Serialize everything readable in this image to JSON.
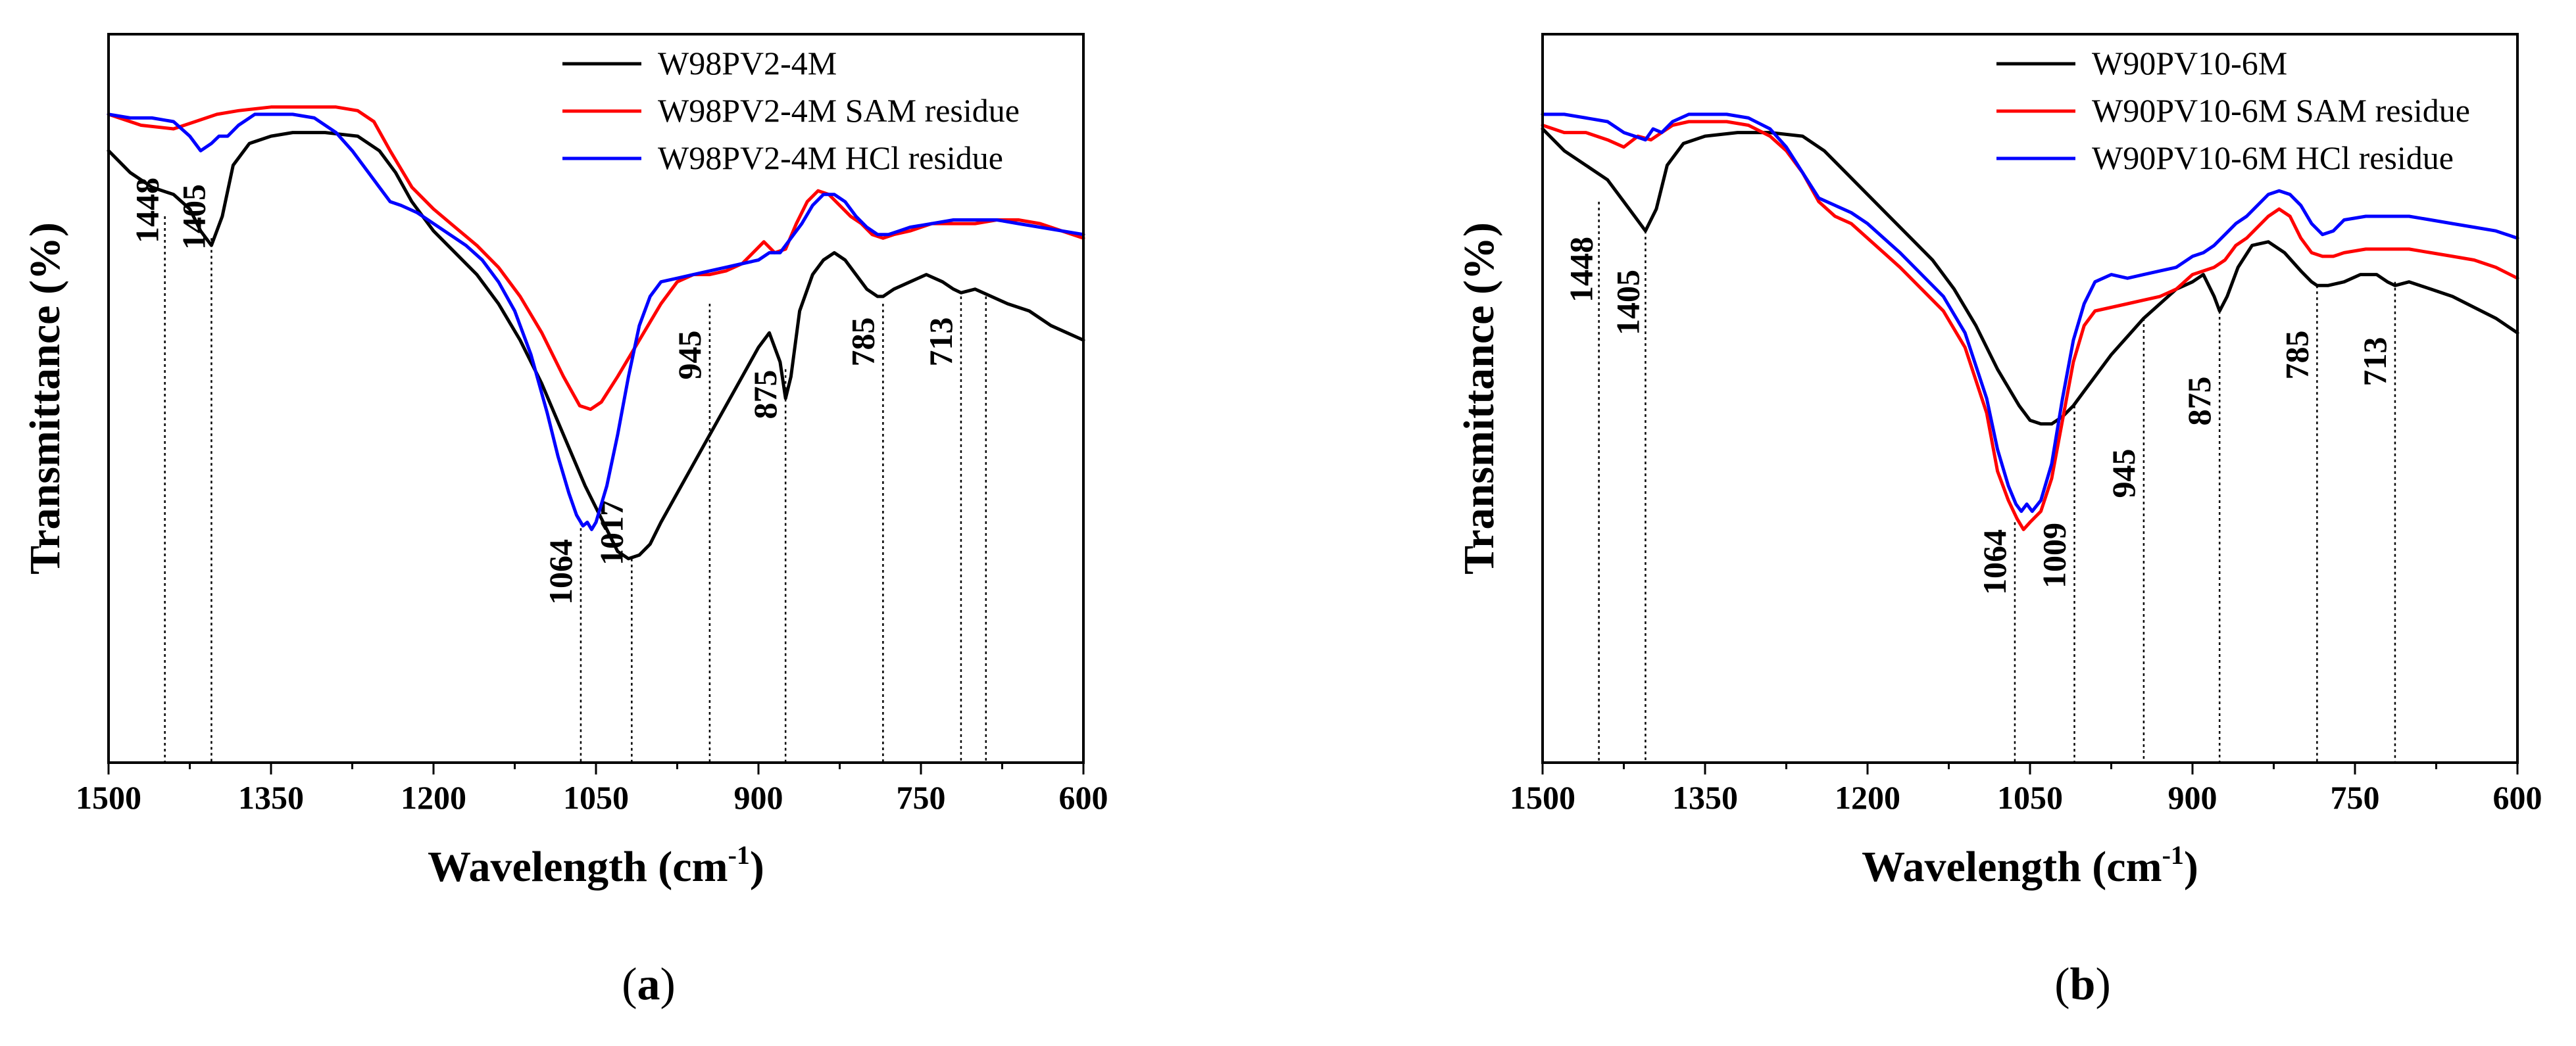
{
  "chart_data": [
    {
      "type": "line",
      "panel_label": "(a)",
      "panel_letter": "a",
      "xlabel": "Wavelength (cm",
      "xlabel_sup": "-1",
      "xlabel_close": ")",
      "ylabel": "Transmittance (%)",
      "xlim": [
        1500,
        600
      ],
      "ylim": [
        0,
        100
      ],
      "x_ticks": [
        1500,
        1350,
        1200,
        1050,
        900,
        750,
        600
      ],
      "y_ticks_labeled": false,
      "legend_position": "top-right",
      "series": [
        {
          "name": "W98PV2-4M",
          "color": "#000000",
          "x": [
            1500,
            1480,
            1460,
            1440,
            1425,
            1415,
            1405,
            1395,
            1385,
            1370,
            1350,
            1330,
            1300,
            1270,
            1250,
            1235,
            1220,
            1200,
            1180,
            1160,
            1140,
            1120,
            1100,
            1080,
            1060,
            1040,
            1030,
            1020,
            1010,
            1000,
            990,
            975,
            960,
            945,
            930,
            915,
            900,
            890,
            880,
            875,
            870,
            862,
            850,
            840,
            830,
            820,
            810,
            800,
            790,
            785,
            775,
            760,
            745,
            730,
            720,
            713,
            700,
            685,
            670,
            650,
            630,
            615,
            600
          ],
          "y": [
            84,
            81,
            79,
            78,
            76,
            73,
            71,
            75,
            82,
            85,
            86,
            86.5,
            86.5,
            86,
            84,
            81,
            77,
            73,
            70,
            67,
            63,
            58,
            52,
            45,
            38,
            32,
            29,
            28,
            28.5,
            30,
            33,
            37,
            41,
            45,
            49,
            53,
            57,
            59,
            55,
            50,
            53,
            62,
            67,
            69,
            70,
            69,
            67,
            65,
            64,
            64,
            65,
            66,
            67,
            66,
            65,
            64.5,
            65,
            64,
            63,
            62,
            60,
            59,
            58
          ]
        },
        {
          "name": "W98PV2-4M SAM residue",
          "color": "#ff0000",
          "x": [
            1500,
            1470,
            1440,
            1420,
            1400,
            1380,
            1350,
            1320,
            1290,
            1270,
            1255,
            1240,
            1220,
            1200,
            1180,
            1160,
            1140,
            1120,
            1100,
            1080,
            1065,
            1055,
            1045,
            1030,
            1010,
            990,
            975,
            960,
            945,
            930,
            915,
            905,
            895,
            885,
            875,
            865,
            855,
            845,
            835,
            825,
            815,
            805,
            795,
            785,
            775,
            760,
            740,
            720,
            700,
            680,
            660,
            640,
            620,
            600
          ],
          "y": [
            89,
            87.5,
            87,
            88,
            89,
            89.5,
            90,
            90,
            90,
            89.5,
            88,
            84,
            79,
            76,
            73.5,
            71,
            68,
            64,
            59,
            53,
            49,
            48.5,
            49.5,
            53,
            58,
            63,
            66,
            67,
            67,
            67.5,
            68.5,
            70,
            71.5,
            70,
            70.5,
            74,
            77,
            78.5,
            78,
            76.5,
            75,
            74,
            72.5,
            72,
            72.5,
            73,
            74,
            74,
            74,
            74.5,
            74.5,
            74,
            73,
            72
          ]
        },
        {
          "name": "W98PV2-4M HCl residue",
          "color": "#0000ff",
          "x": [
            1500,
            1480,
            1460,
            1440,
            1425,
            1415,
            1405,
            1398,
            1390,
            1380,
            1365,
            1350,
            1330,
            1310,
            1290,
            1275,
            1260,
            1250,
            1240,
            1230,
            1215,
            1200,
            1185,
            1170,
            1155,
            1140,
            1125,
            1110,
            1095,
            1085,
            1075,
            1068,
            1062,
            1058,
            1054,
            1050,
            1040,
            1030,
            1020,
            1010,
            1000,
            990,
            975,
            960,
            945,
            930,
            915,
            900,
            890,
            880,
            870,
            860,
            850,
            840,
            830,
            820,
            810,
            800,
            790,
            780,
            770,
            760,
            740,
            720,
            700,
            680,
            660,
            640,
            620,
            600
          ],
          "y": [
            89,
            88.5,
            88.5,
            88,
            86,
            84,
            85,
            86,
            86,
            87.5,
            89,
            89,
            89,
            88.5,
            86.5,
            84,
            81,
            79,
            77,
            76.5,
            75.5,
            74,
            72.5,
            71,
            69,
            66,
            62,
            56,
            48,
            42,
            37,
            34,
            32.5,
            33,
            32,
            33,
            38,
            45,
            53,
            60,
            64,
            66,
            66.5,
            67,
            67.5,
            68,
            68.5,
            69,
            70,
            70,
            72,
            74,
            76.5,
            78,
            78,
            77,
            75,
            73.5,
            72.5,
            72.5,
            73,
            73.5,
            74,
            74.5,
            74.5,
            74.5,
            74,
            73.5,
            73,
            72.5
          ]
        }
      ],
      "annotations": [
        {
          "label": "1448",
          "x": 1448,
          "y_top": 75
        },
        {
          "label": "1405",
          "x": 1405,
          "y_top": 72
        },
        {
          "label": "1064",
          "x": 1064,
          "y_top": 33
        },
        {
          "label": "1017",
          "x": 1017,
          "y_top": 28
        },
        {
          "label": "945",
          "x": 945,
          "y_top": 63
        },
        {
          "label": "875",
          "x": 875,
          "y_top": 54
        },
        {
          "label": "785",
          "x": 785,
          "y_top": 63
        },
        {
          "label": "713",
          "x": 713,
          "y_top": 64
        },
        {
          "label": "",
          "x": 690,
          "y_top": 64
        }
      ]
    },
    {
      "type": "line",
      "panel_label": "(b)",
      "panel_letter": "b",
      "xlabel": "Wavelength (cm",
      "xlabel_sup": "-1",
      "xlabel_close": ")",
      "ylabel": "Transmittance (%)",
      "xlim": [
        1500,
        600
      ],
      "ylim": [
        0,
        100
      ],
      "x_ticks": [
        1500,
        1350,
        1200,
        1050,
        900,
        750,
        600
      ],
      "y_ticks_labeled": false,
      "legend_position": "top-right",
      "series": [
        {
          "name": "W90PV10-6M",
          "color": "#000000",
          "x": [
            1500,
            1480,
            1460,
            1440,
            1425,
            1415,
            1405,
            1395,
            1385,
            1370,
            1350,
            1320,
            1290,
            1260,
            1240,
            1220,
            1200,
            1180,
            1160,
            1140,
            1120,
            1100,
            1080,
            1060,
            1050,
            1040,
            1030,
            1020,
            1010,
            1000,
            990,
            975,
            960,
            945,
            930,
            915,
            900,
            890,
            880,
            875,
            868,
            858,
            845,
            830,
            815,
            800,
            790,
            785,
            775,
            760,
            745,
            730,
            720,
            713,
            700,
            680,
            660,
            640,
            620,
            600
          ],
          "y": [
            87,
            84,
            82,
            80,
            77,
            75,
            73,
            76,
            82,
            85,
            86,
            86.5,
            86.5,
            86,
            84,
            81,
            78,
            75,
            72,
            69,
            65,
            60,
            54,
            49,
            47,
            46.5,
            46.5,
            47.5,
            49,
            51,
            53,
            56,
            58.5,
            61,
            63,
            65,
            66,
            67,
            64,
            62,
            64,
            68,
            71,
            71.5,
            70,
            67.5,
            66,
            65.5,
            65.5,
            66,
            67,
            67,
            66,
            65.5,
            66,
            65,
            64,
            62.5,
            61,
            59
          ]
        },
        {
          "name": "W90PV10-6M SAM residue",
          "color": "#ff0000",
          "x": [
            1500,
            1480,
            1460,
            1440,
            1425,
            1412,
            1400,
            1390,
            1380,
            1365,
            1350,
            1330,
            1310,
            1290,
            1275,
            1260,
            1245,
            1230,
            1215,
            1200,
            1185,
            1170,
            1150,
            1130,
            1110,
            1090,
            1080,
            1070,
            1062,
            1056,
            1050,
            1040,
            1030,
            1020,
            1010,
            1000,
            990,
            975,
            960,
            945,
            930,
            915,
            900,
            890,
            880,
            870,
            860,
            850,
            840,
            830,
            820,
            810,
            800,
            790,
            780,
            770,
            760,
            740,
            720,
            700,
            680,
            660,
            640,
            620,
            600
          ],
          "y": [
            87.5,
            86.5,
            86.5,
            85.5,
            84.5,
            86,
            85.5,
            86.5,
            87.5,
            88,
            88,
            88,
            87.5,
            86,
            84,
            81,
            77,
            75,
            74,
            72,
            70,
            68,
            65,
            62,
            57,
            48,
            40,
            36,
            33.5,
            32,
            33,
            34.5,
            39,
            47,
            55,
            60,
            62,
            62.5,
            63,
            63.5,
            64,
            65,
            67,
            67.5,
            68,
            69,
            71,
            72,
            73.5,
            75,
            76,
            75,
            72,
            70,
            69.5,
            69.5,
            70,
            70.5,
            70.5,
            70.5,
            70,
            69.5,
            69,
            68,
            66.5
          ]
        },
        {
          "name": "W90PV10-6M HCl residue",
          "color": "#0000ff",
          "x": [
            1500,
            1480,
            1460,
            1440,
            1425,
            1415,
            1405,
            1398,
            1390,
            1380,
            1365,
            1350,
            1330,
            1310,
            1290,
            1275,
            1260,
            1245,
            1230,
            1215,
            1200,
            1185,
            1170,
            1150,
            1130,
            1110,
            1090,
            1080,
            1070,
            1063,
            1058,
            1053,
            1048,
            1040,
            1030,
            1020,
            1010,
            1000,
            990,
            975,
            960,
            945,
            930,
            915,
            900,
            890,
            880,
            870,
            860,
            850,
            840,
            830,
            820,
            810,
            800,
            790,
            780,
            770,
            760,
            740,
            720,
            700,
            680,
            660,
            640,
            620,
            600
          ],
          "y": [
            89,
            89,
            88.5,
            88,
            86.5,
            86,
            85.5,
            87,
            86.5,
            88,
            89,
            89,
            89,
            88.5,
            87,
            84.5,
            81,
            77.5,
            76.5,
            75.5,
            74,
            72,
            70,
            67,
            64,
            59,
            50,
            43,
            38,
            35.5,
            34.5,
            35.5,
            34.5,
            36,
            41,
            50,
            58,
            63,
            66,
            67,
            66.5,
            67,
            67.5,
            68,
            69.5,
            70,
            71,
            72.5,
            74,
            75,
            76.5,
            78,
            78.5,
            78,
            76.5,
            74,
            72.5,
            73,
            74.5,
            75,
            75,
            75,
            74.5,
            74,
            73.5,
            73,
            72
          ]
        }
      ],
      "annotations": [
        {
          "label": "1448",
          "x": 1448,
          "y_top": 77
        },
        {
          "label": "1405",
          "x": 1405,
          "y_top": 73
        },
        {
          "label": "1064",
          "x": 1064,
          "y_top": 33
        },
        {
          "label": "1009",
          "x": 1009,
          "y_top": 49
        },
        {
          "label": "945",
          "x": 945,
          "y_top": 61
        },
        {
          "label": "875",
          "x": 875,
          "y_top": 62
        },
        {
          "label": "785",
          "x": 785,
          "y_top": 65.5
        },
        {
          "label": "713",
          "x": 713,
          "y_top": 66
        }
      ]
    }
  ]
}
